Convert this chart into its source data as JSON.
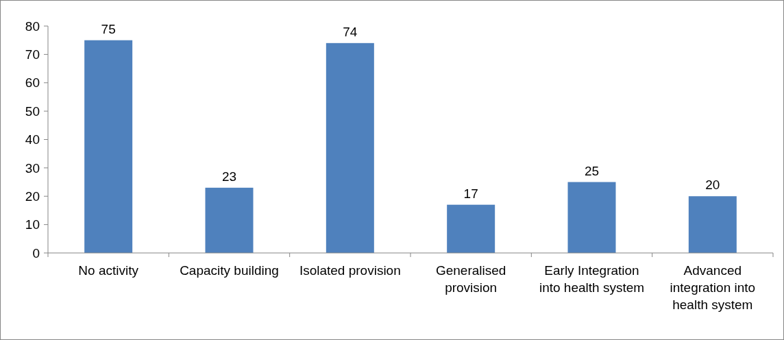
{
  "chart_data": {
    "type": "bar",
    "categories": [
      "No activity",
      "Capacity building",
      "Isolated provision",
      "Generalised provision",
      "Early Integration into health system",
      "Advanced integration into health system"
    ],
    "values": [
      75,
      23,
      74,
      17,
      25,
      20
    ],
    "color": "#4f81bd",
    "ylim": [
      0,
      80
    ],
    "yticks": [
      0,
      10,
      20,
      30,
      40,
      50,
      60,
      70,
      80
    ],
    "data_labels": true
  }
}
